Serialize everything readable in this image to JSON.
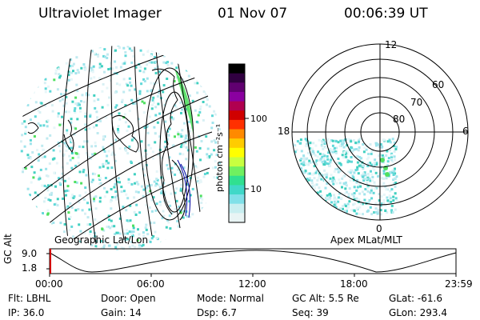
{
  "header": {
    "instrument": "Ultraviolet Imager",
    "date": "01 Nov 07",
    "time": "00:06:39 UT"
  },
  "colorbar": {
    "unit_label": "photon cm⁻²s⁻¹",
    "ticks": [
      "100",
      "10"
    ],
    "colors": [
      "#000000",
      "#300040",
      "#600070",
      "#8a00a0",
      "#b00050",
      "#d00000",
      "#ff3000",
      "#ff8a00",
      "#ffcc00",
      "#ffff00",
      "#c8ff40",
      "#70f060",
      "#30e090",
      "#40d8c8",
      "#80e0e8",
      "#c8eef0",
      "#e8f4f4"
    ]
  },
  "left_map": {
    "caption": "Geographic Lat/Lon"
  },
  "polar_plot": {
    "caption": "Apex MLat/MLT",
    "mlt_labels": {
      "top": "12",
      "left": "18",
      "right": "6",
      "bottom": "0"
    },
    "lat_labels": [
      "60",
      "70",
      "80"
    ]
  },
  "altitude_strip": {
    "axis_label": "GC Alt",
    "y_ticks": [
      "9.0",
      "1.8"
    ],
    "x_ticks": [
      "00:00",
      "06:00",
      "12:00",
      "18:00",
      "23:59"
    ]
  },
  "info_rows": [
    [
      {
        "key": "Flt:",
        "value": "LBHL"
      },
      {
        "key": "Door:",
        "value": "Open"
      },
      {
        "key": "Mode:",
        "value": "Normal"
      },
      {
        "key": "GC Alt:",
        "value": "5.5 Re"
      },
      {
        "key": "GLat:",
        "value": "-61.6"
      }
    ],
    [
      {
        "key": "IP:",
        "value": "36.0"
      },
      {
        "key": "Gain:",
        "value": "14"
      },
      {
        "key": "Dsp:",
        "value": "6.7"
      },
      {
        "key": "Seq:",
        "value": "39"
      },
      {
        "key": "GLon:",
        "value": "293.4"
      }
    ]
  ]
}
